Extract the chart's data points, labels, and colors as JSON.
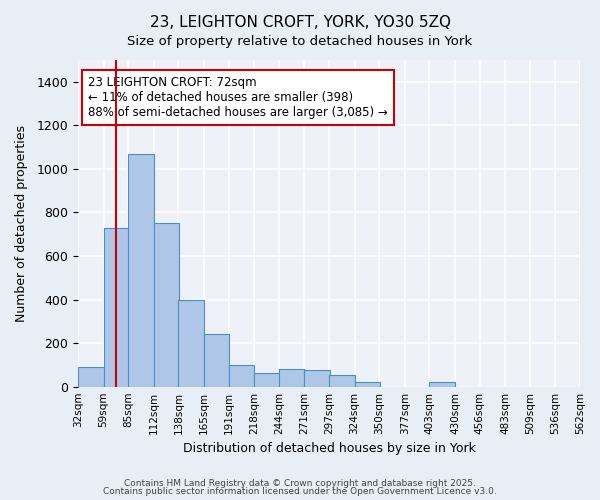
{
  "title_line1": "23, LEIGHTON CROFT, YORK, YO30 5ZQ",
  "title_line2": "Size of property relative to detached houses in York",
  "xlabel": "Distribution of detached houses by size in York",
  "ylabel": "Number of detached properties",
  "bin_labels": [
    "32sqm",
    "59sqm",
    "85sqm",
    "112sqm",
    "138sqm",
    "165sqm",
    "191sqm",
    "218sqm",
    "244sqm",
    "271sqm",
    "297sqm",
    "324sqm",
    "350sqm",
    "377sqm",
    "403sqm",
    "430sqm",
    "456sqm",
    "483sqm",
    "509sqm",
    "536sqm",
    "562sqm"
  ],
  "bin_edges": [
    32,
    59,
    85,
    112,
    138,
    165,
    191,
    218,
    244,
    271,
    297,
    324,
    350,
    377,
    403,
    430,
    456,
    483,
    509,
    536,
    562
  ],
  "bin_counts": [
    90,
    730,
    1070,
    750,
    400,
    240,
    100,
    65,
    80,
    75,
    55,
    20,
    0,
    0,
    20,
    0,
    0,
    0,
    0,
    0
  ],
  "bar_color": "#aec6e8",
  "bar_edge_color": "#4a90c4",
  "vline_x": 72,
  "vline_color": "#cc0000",
  "annotation_text": "23 LEIGHTON CROFT: 72sqm\n← 11% of detached houses are smaller (398)\n88% of semi-detached houses are larger (3,085) →",
  "annotation_box_color": "#ffffff",
  "annotation_box_edge_color": "#cc0000",
  "ylim": [
    0,
    1500
  ],
  "yticks": [
    0,
    200,
    400,
    600,
    800,
    1000,
    1200,
    1400
  ],
  "bg_color": "#e8eef5",
  "plot_bg_color": "#eef2f8",
  "grid_color": "#ffffff",
  "footnote1": "Contains HM Land Registry data © Crown copyright and database right 2025.",
  "footnote2": "Contains public sector information licensed under the Open Government Licence v3.0."
}
